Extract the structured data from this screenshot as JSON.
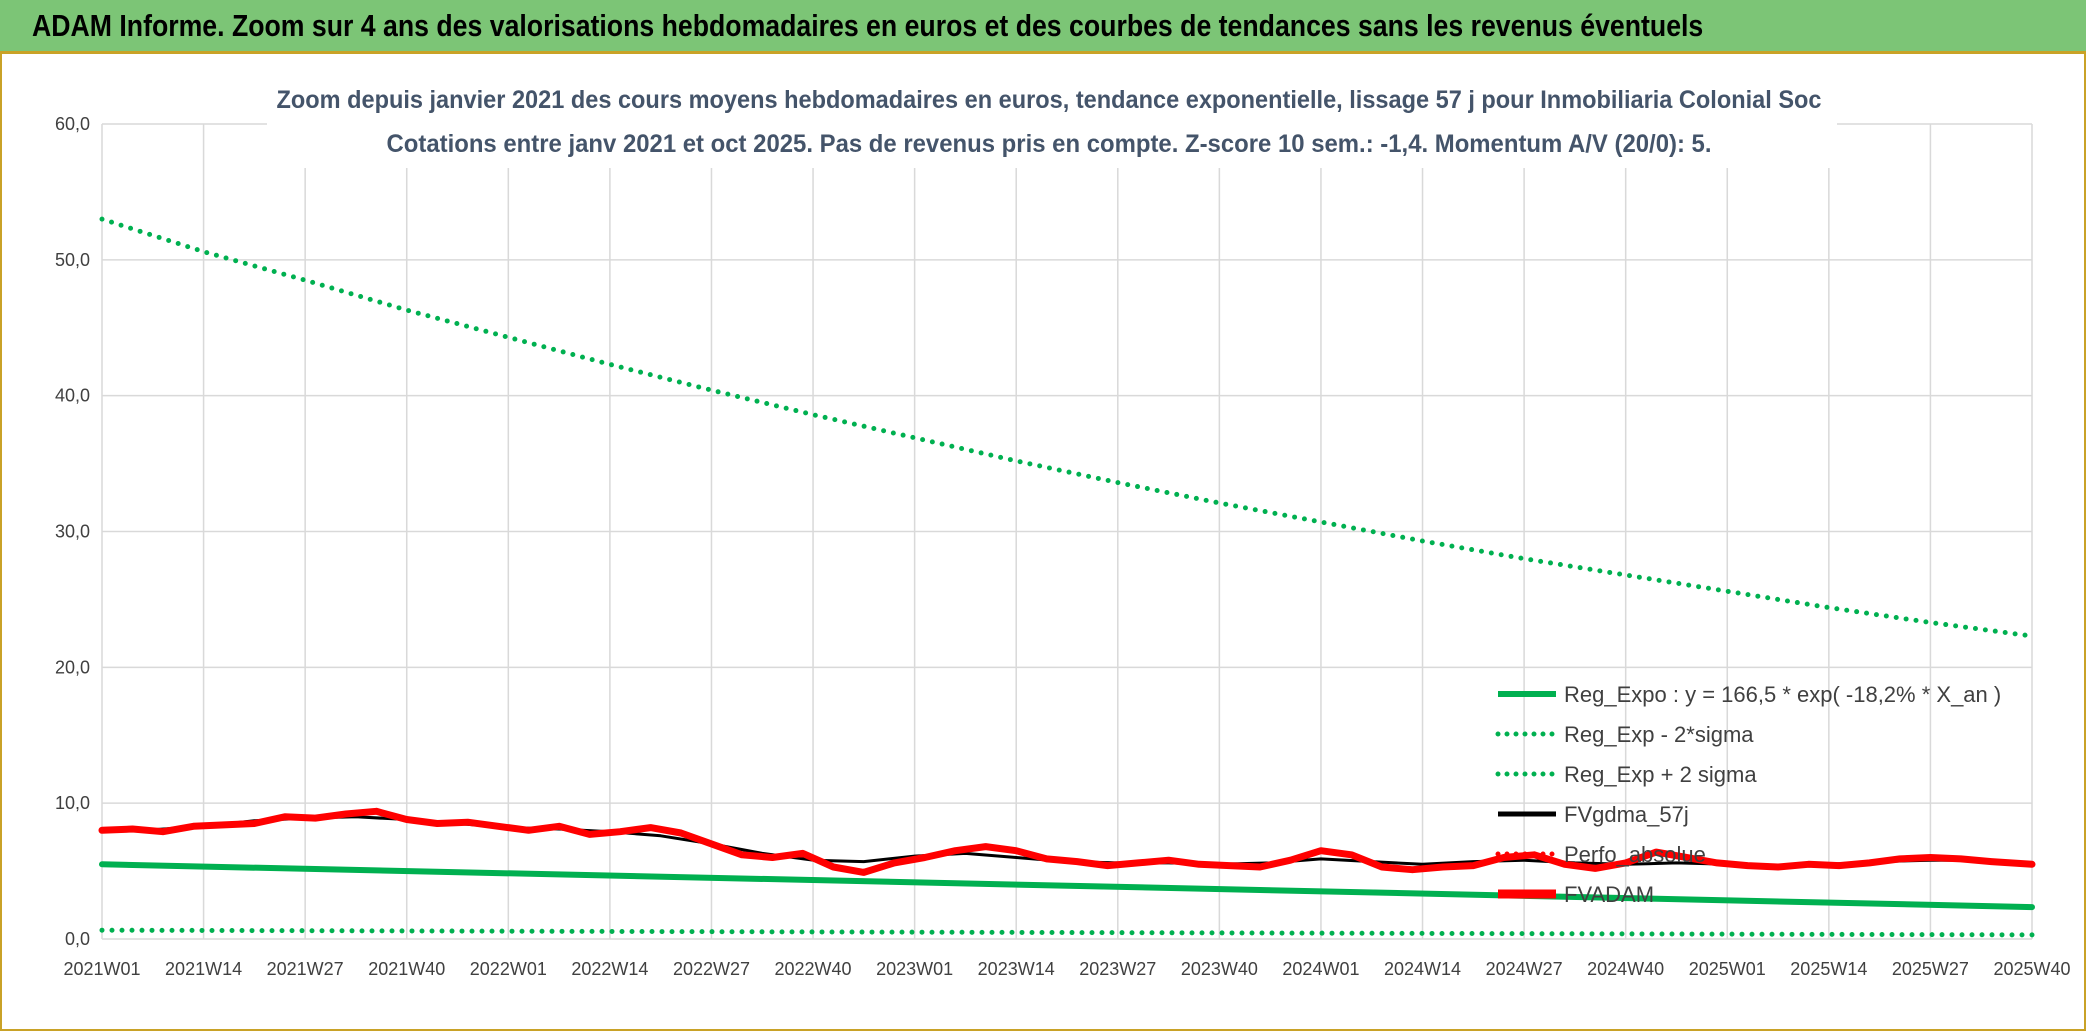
{
  "banner": {
    "title": "ADAM Informe. Zoom sur 4 ans des valorisations hebdomadaires en euros et des courbes de tendances sans les revenus éventuels"
  },
  "chart_data": {
    "type": "line",
    "title": "Zoom depuis janvier 2021 des cours moyens hebdomadaires en euros, tendance exponentielle, lissage 57 j pour Inmobiliaria Colonial Soc",
    "subtitle": "Cotations entre janv 2021 et oct 2025. Pas de revenus pris en compte. Z-score 10 sem.: -1,4. Momentum A/V (20/0): 5.",
    "xlabel": "",
    "ylabel": "",
    "ylim": [
      0,
      60
    ],
    "y_ticks": [
      "0,0",
      "10,0",
      "20,0",
      "30,0",
      "40,0",
      "50,0",
      "60,0"
    ],
    "x_ticks": [
      "2021W01",
      "2021W14",
      "2021W27",
      "2021W40",
      "2022W01",
      "2022W14",
      "2022W27",
      "2022W40",
      "2023W01",
      "2023W14",
      "2023W27",
      "2023W40",
      "2024W01",
      "2024W14",
      "2024W27",
      "2024W40",
      "2025W01",
      "2025W14",
      "2025W27",
      "2025W40"
    ],
    "grid": true,
    "legend_position": "bottom-right",
    "colors": {
      "green": "#00b050",
      "red": "#ff0000",
      "black": "#000000",
      "grid": "#d9d9d9",
      "accent": "#c9a227"
    },
    "series": [
      {
        "name": "Reg_Expo : y = 166,5 * exp( -18,2% *  X_an )",
        "style": "solid",
        "color": "#00b050",
        "points": [
          [
            0,
            5.5
          ],
          [
            19,
            2.35
          ]
        ]
      },
      {
        "name": "Reg_Exp - 2*sigma",
        "style": "dotted",
        "color": "#00b050",
        "points": [
          [
            0,
            0.65
          ],
          [
            19,
            0.3
          ]
        ]
      },
      {
        "name": "Reg_Exp + 2 sigma",
        "style": "dotted",
        "color": "#00b050",
        "points": [
          [
            0,
            53.0
          ],
          [
            1,
            50.6
          ],
          [
            2,
            48.5
          ],
          [
            3,
            46.3
          ],
          [
            4,
            44.3
          ],
          [
            5,
            42.3
          ],
          [
            6,
            40.4
          ],
          [
            7,
            38.6
          ],
          [
            8,
            36.9
          ],
          [
            9,
            35.2
          ],
          [
            10,
            33.6
          ],
          [
            11,
            32.1
          ],
          [
            12,
            30.7
          ],
          [
            13,
            29.3
          ],
          [
            14,
            28.0
          ],
          [
            15,
            26.8
          ],
          [
            16,
            25.6
          ],
          [
            17,
            24.4
          ],
          [
            18,
            23.3
          ],
          [
            19,
            22.3
          ]
        ]
      },
      {
        "name": "FVgdma_57j",
        "style": "solid",
        "color": "#000000",
        "points": [
          [
            0,
            8.0
          ],
          [
            0.5,
            8.05
          ],
          [
            1,
            8.3
          ],
          [
            1.5,
            8.7
          ],
          [
            2,
            8.9
          ],
          [
            2.5,
            9.0
          ],
          [
            3,
            8.8
          ],
          [
            3.5,
            8.5
          ],
          [
            4,
            8.2
          ],
          [
            4.5,
            8.1
          ],
          [
            5,
            7.9
          ],
          [
            5.5,
            7.6
          ],
          [
            6,
            7.0
          ],
          [
            6.5,
            6.3
          ],
          [
            7,
            5.8
          ],
          [
            7.5,
            5.7
          ],
          [
            8,
            6.1
          ],
          [
            8.5,
            6.3
          ],
          [
            9,
            6.0
          ],
          [
            9.5,
            5.7
          ],
          [
            10,
            5.6
          ],
          [
            10.5,
            5.6
          ],
          [
            11,
            5.5
          ],
          [
            11.5,
            5.6
          ],
          [
            12,
            5.9
          ],
          [
            12.5,
            5.7
          ],
          [
            13,
            5.5
          ],
          [
            13.5,
            5.7
          ],
          [
            14,
            5.8
          ],
          [
            14.5,
            5.6
          ],
          [
            15,
            5.5
          ],
          [
            15.5,
            5.6
          ],
          [
            16,
            5.5
          ],
          [
            16.5,
            5.4
          ],
          [
            17,
            5.5
          ],
          [
            17.5,
            5.7
          ],
          [
            18,
            5.8
          ],
          [
            18.5,
            5.8
          ],
          [
            19,
            5.6
          ]
        ]
      },
      {
        "name": "Perfo_absolue",
        "style": "dotted",
        "color": "#ff0000",
        "points": []
      },
      {
        "name": "FVADAM",
        "style": "solid",
        "color": "#ff0000",
        "points": [
          [
            0,
            8.0
          ],
          [
            0.3,
            8.1
          ],
          [
            0.6,
            7.9
          ],
          [
            0.9,
            8.3
          ],
          [
            1.2,
            8.4
          ],
          [
            1.5,
            8.5
          ],
          [
            1.8,
            9.0
          ],
          [
            2.1,
            8.9
          ],
          [
            2.4,
            9.2
          ],
          [
            2.7,
            9.4
          ],
          [
            3.0,
            8.8
          ],
          [
            3.3,
            8.5
          ],
          [
            3.6,
            8.6
          ],
          [
            3.9,
            8.3
          ],
          [
            4.2,
            8.0
          ],
          [
            4.5,
            8.3
          ],
          [
            4.8,
            7.7
          ],
          [
            5.1,
            7.9
          ],
          [
            5.4,
            8.2
          ],
          [
            5.7,
            7.8
          ],
          [
            6.0,
            7.0
          ],
          [
            6.3,
            6.2
          ],
          [
            6.6,
            6.0
          ],
          [
            6.9,
            6.3
          ],
          [
            7.2,
            5.3
          ],
          [
            7.5,
            4.9
          ],
          [
            7.8,
            5.6
          ],
          [
            8.1,
            6.0
          ],
          [
            8.4,
            6.5
          ],
          [
            8.7,
            6.8
          ],
          [
            9.0,
            6.5
          ],
          [
            9.3,
            5.9
          ],
          [
            9.6,
            5.7
          ],
          [
            9.9,
            5.4
          ],
          [
            10.2,
            5.6
          ],
          [
            10.5,
            5.8
          ],
          [
            10.8,
            5.5
          ],
          [
            11.1,
            5.4
          ],
          [
            11.4,
            5.3
          ],
          [
            11.7,
            5.8
          ],
          [
            12.0,
            6.5
          ],
          [
            12.3,
            6.2
          ],
          [
            12.6,
            5.3
          ],
          [
            12.9,
            5.1
          ],
          [
            13.2,
            5.3
          ],
          [
            13.5,
            5.4
          ],
          [
            13.8,
            6.0
          ],
          [
            14.1,
            6.2
          ],
          [
            14.4,
            5.5
          ],
          [
            14.7,
            5.2
          ],
          [
            15.0,
            5.6
          ],
          [
            15.3,
            6.4
          ],
          [
            15.6,
            6.0
          ],
          [
            15.9,
            5.6
          ],
          [
            16.2,
            5.4
          ],
          [
            16.5,
            5.3
          ],
          [
            16.8,
            5.5
          ],
          [
            17.1,
            5.4
          ],
          [
            17.4,
            5.6
          ],
          [
            17.7,
            5.9
          ],
          [
            18.0,
            6.0
          ],
          [
            18.3,
            5.9
          ],
          [
            18.6,
            5.7
          ],
          [
            19.0,
            5.5
          ]
        ]
      }
    ]
  }
}
